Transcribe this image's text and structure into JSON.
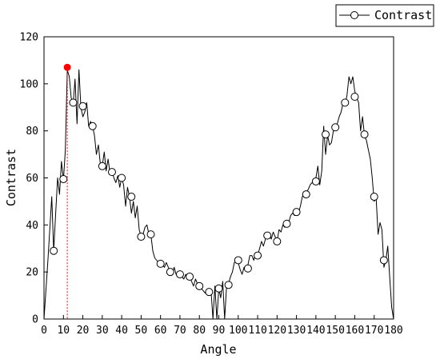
{
  "chart_data": {
    "type": "line",
    "title": "",
    "xlabel": "Angle",
    "ylabel": "Contrast",
    "xlim": [
      0,
      180
    ],
    "ylim": [
      0,
      120
    ],
    "xticks": [
      0,
      10,
      20,
      30,
      40,
      50,
      60,
      70,
      80,
      90,
      100,
      110,
      120,
      130,
      140,
      150,
      160,
      170,
      180
    ],
    "yticks": [
      0,
      20,
      40,
      60,
      80,
      100,
      120
    ],
    "grid": false,
    "legend": {
      "position": "top-right",
      "entries": [
        "Contrast"
      ]
    },
    "series": [
      {
        "name": "Contrast",
        "color": "#000000",
        "x": [
          0,
          2,
          4,
          5,
          6,
          7,
          8,
          9,
          10,
          11,
          12,
          13,
          14,
          15,
          16,
          17,
          18,
          19,
          20,
          21,
          22,
          23,
          24,
          25,
          26,
          27,
          28,
          29,
          30,
          31,
          32,
          33,
          34,
          35,
          36,
          37,
          38,
          39,
          40,
          41,
          42,
          43,
          44,
          45,
          46,
          47,
          48,
          49,
          50,
          51,
          52,
          53,
          54,
          55,
          56,
          57,
          58,
          59,
          60,
          61,
          62,
          63,
          64,
          65,
          66,
          67,
          68,
          69,
          70,
          71,
          72,
          73,
          74,
          75,
          76,
          77,
          78,
          79,
          80,
          81,
          82,
          83,
          84,
          85,
          86,
          87,
          88,
          89,
          90,
          91,
          92,
          93,
          94,
          95,
          96,
          97,
          98,
          99,
          100,
          101,
          102,
          103,
          104,
          105,
          106,
          107,
          108,
          109,
          110,
          111,
          112,
          113,
          114,
          115,
          116,
          117,
          118,
          119,
          120,
          121,
          122,
          123,
          124,
          125,
          126,
          127,
          128,
          129,
          130,
          131,
          132,
          133,
          134,
          135,
          136,
          137,
          138,
          139,
          140,
          141,
          142,
          143,
          144,
          145,
          146,
          147,
          148,
          149,
          150,
          151,
          152,
          153,
          154,
          155,
          156,
          157,
          158,
          159,
          160,
          161,
          162,
          163,
          164,
          165,
          166,
          167,
          168,
          169,
          170,
          171,
          172,
          173,
          174,
          175,
          176,
          177,
          178,
          179,
          180
        ],
        "y": [
          0,
          25,
          52,
          29,
          45,
          60,
          53,
          67,
          59,
          72,
          106,
          103,
          94,
          91,
          102,
          83,
          106,
          90,
          86,
          88,
          92,
          82,
          84,
          82,
          78,
          70,
          74,
          66,
          65,
          71,
          63,
          68,
          62,
          63,
          60,
          58,
          61,
          56,
          60,
          57,
          48,
          56,
          52,
          45,
          50,
          43,
          48,
          38,
          35,
          36,
          39,
          40,
          36,
          36,
          29,
          26,
          25,
          24,
          23,
          23,
          22,
          24,
          22,
          20,
          19,
          22,
          19,
          18,
          20,
          18,
          17,
          19,
          17,
          18,
          16,
          14,
          17,
          15,
          14,
          13,
          12,
          11,
          11,
          13,
          12,
          0,
          14,
          0,
          13,
          9,
          16,
          0,
          14,
          15,
          18,
          20,
          24,
          25,
          24,
          21,
          19,
          22,
          21,
          23,
          27,
          27,
          25,
          28,
          27,
          30,
          33,
          31,
          34,
          35,
          36,
          34,
          37,
          35,
          33,
          38,
          37,
          40,
          39,
          42,
          41,
          44,
          45,
          44,
          46,
          45,
          48,
          52,
          53,
          54,
          55,
          57,
          58,
          59,
          60,
          65,
          57,
          63,
          82,
          70,
          78,
          74,
          75,
          80,
          81,
          83,
          86,
          88,
          92,
          91,
          95,
          103,
          100,
          103,
          97,
          94,
          92,
          80,
          86,
          78,
          76,
          72,
          68,
          60,
          50,
          52,
          36,
          41,
          38,
          22,
          25,
          31,
          18,
          5,
          0
        ],
        "markers": [
          [
            5,
            29
          ],
          [
            10,
            59.5
          ],
          [
            15,
            92
          ],
          [
            20,
            90.5
          ],
          [
            25,
            82
          ],
          [
            30,
            65
          ],
          [
            35,
            62.5
          ],
          [
            40,
            60
          ],
          [
            45,
            52
          ],
          [
            50,
            35
          ],
          [
            55,
            36
          ],
          [
            60,
            23.5
          ],
          [
            65,
            20
          ],
          [
            70,
            19
          ],
          [
            75,
            18
          ],
          [
            80,
            14
          ],
          [
            85,
            11.5
          ],
          [
            90,
            13
          ],
          [
            95,
            14.5
          ],
          [
            100,
            25
          ],
          [
            105,
            21.5
          ],
          [
            110,
            27
          ],
          [
            115,
            35.5
          ],
          [
            120,
            33
          ],
          [
            125,
            40.5
          ],
          [
            130,
            45.5
          ],
          [
            135,
            53
          ],
          [
            140,
            58.5
          ],
          [
            145,
            78.5
          ],
          [
            150,
            81.5
          ],
          [
            155,
            92
          ],
          [
            160,
            94.5
          ],
          [
            165,
            78.5
          ],
          [
            170,
            52
          ],
          [
            175,
            25
          ]
        ]
      }
    ],
    "highlight": {
      "x": 12,
      "y": 107,
      "color": "#ff0000"
    }
  }
}
